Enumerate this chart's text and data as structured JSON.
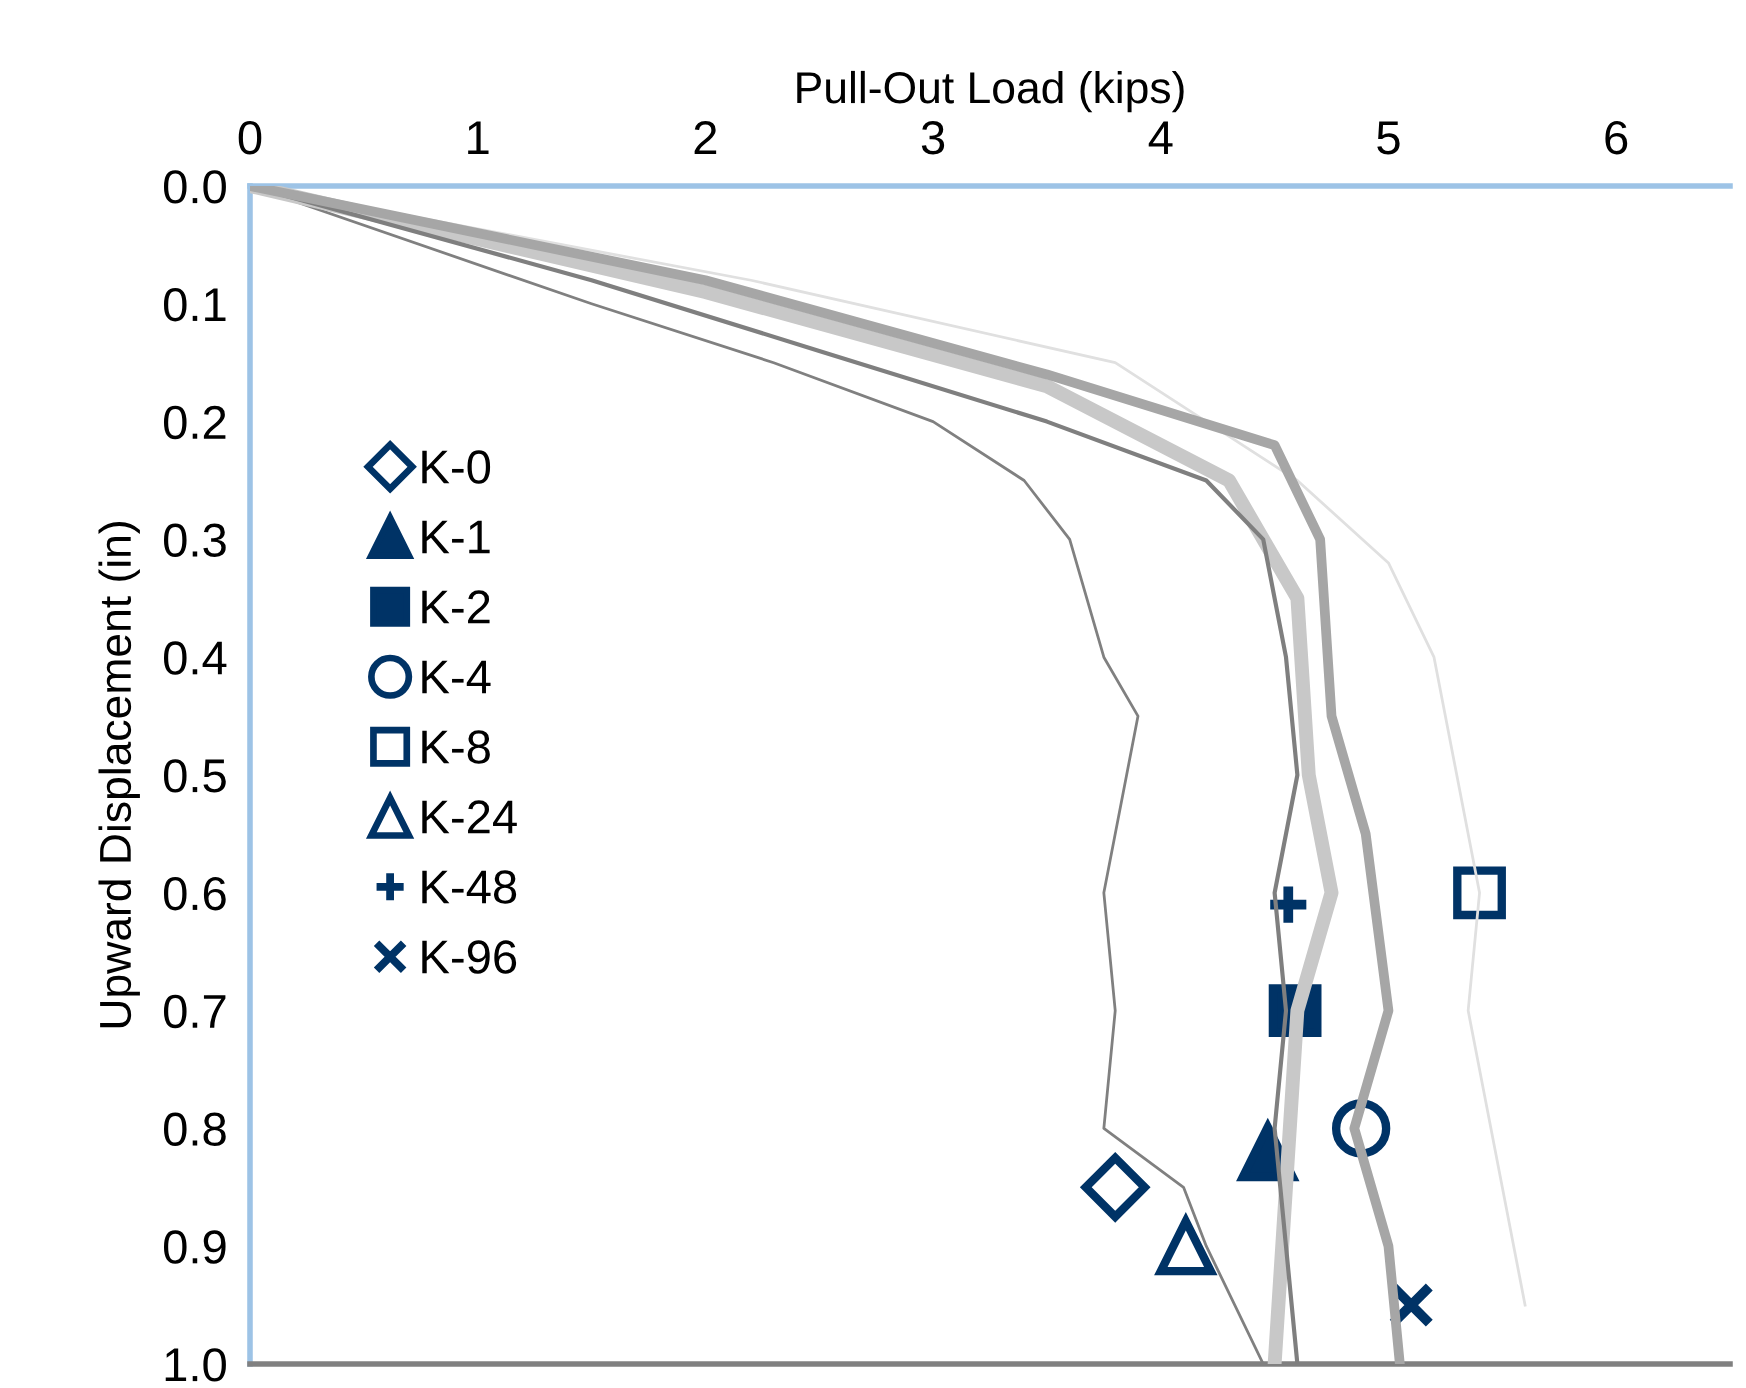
{
  "chart_data": {
    "type": "line",
    "xlabel": "Pull-Out Load (kips)",
    "ylabel": "Upward Displacement (in)",
    "xlim": [
      0,
      6.5
    ],
    "xticks": [
      0,
      1,
      2,
      3,
      4,
      5,
      6
    ],
    "ylim": [
      1.0,
      0.0
    ],
    "yticks": [
      {
        "value": 0,
        "label": "0.0"
      },
      0.1,
      0.2,
      0.3,
      0.4,
      0.5,
      0.6,
      0.7,
      0.8,
      0.9,
      {
        "value": 1,
        "label": "1.0"
      }
    ],
    "grid": false,
    "legend": "left",
    "marker": "none",
    "line_style": "solid",
    "series": [
      {
        "color": "#e0e0e0",
        "x": [
          0,
          2.2,
          3.8,
          4.6,
          5.0,
          5.2,
          5.3,
          5.4,
          5.35,
          5.5,
          5.6
        ],
        "values": [
          0,
          0.08,
          0.15,
          0.25,
          0.32,
          0.4,
          0.5,
          0.6,
          0.7,
          0.85,
          0.95
        ]
      },
      {
        "color": "#808080",
        "x": [
          0,
          1.5,
          2.3,
          3.0,
          3.4,
          3.6,
          3.75,
          3.9,
          3.85,
          3.75,
          3.8,
          3.75,
          4.1,
          4.2,
          4.45
        ],
        "values": [
          0,
          0.1,
          0.15,
          0.2,
          0.25,
          0.3,
          0.4,
          0.45,
          0.5,
          0.6,
          0.7,
          0.8,
          0.85,
          0.9,
          1.0
        ]
      },
      {
        "color": "#c8c8c8",
        "x": [
          0,
          2,
          3.5,
          4.3,
          4.6,
          4.65,
          4.75,
          4.6,
          4.55,
          4.5
        ],
        "values": [
          0,
          0.09,
          0.17,
          0.25,
          0.35,
          0.5,
          0.6,
          0.7,
          0.85,
          1.0
        ]
      },
      {
        "color": "#7f7f7f",
        "x": [
          0,
          1.5,
          2.5,
          3.5,
          4.2,
          4.45,
          4.55,
          4.6,
          4.5,
          4.55,
          4.5,
          4.55,
          4.6
        ],
        "values": [
          0,
          0.08,
          0.14,
          0.2,
          0.25,
          0.3,
          0.4,
          0.5,
          0.6,
          0.7,
          0.8,
          0.9,
          1.0
        ]
      },
      {
        "color": "#a6a6a6",
        "x": [
          0,
          2,
          3.5,
          4.5,
          4.7,
          4.75,
          4.9,
          5.0,
          4.85,
          5.0,
          5.05
        ],
        "values": [
          0,
          0.08,
          0.16,
          0.22,
          0.3,
          0.45,
          0.55,
          0.7,
          0.8,
          0.9,
          1.0
        ]
      },
      {
        "type": "scatter",
        "name": "K-0",
        "color": "#003366",
        "marker": "diamond",
        "x": [
          3.8
        ],
        "values": [
          0.85
        ]
      },
      {
        "type": "scatter",
        "name": "K-1",
        "color": "#003366",
        "marker": "triangle",
        "x": [
          4.47
        ],
        "values": [
          0.82
        ]
      },
      {
        "type": "scatter",
        "name": "K-2",
        "color": "#003366",
        "marker": "square",
        "x": [
          4.59
        ],
        "values": [
          0.7
        ]
      },
      {
        "type": "scatter",
        "name": "K-4",
        "color": "#003366",
        "marker": "circle",
        "x": [
          4.88
        ],
        "values": [
          0.8
        ]
      },
      {
        "type": "scatter",
        "name": "K-8",
        "color": "#003366",
        "marker": "square",
        "x": [
          5.4
        ],
        "values": [
          0.6
        ]
      },
      {
        "type": "scatter",
        "name": "K-24",
        "color": "#003366",
        "marker": "triangle",
        "x": [
          4.11
        ],
        "values": [
          0.9
        ]
      },
      {
        "type": "scatter",
        "name": "K-48",
        "color": "#003366",
        "marker": "plus",
        "x": [
          4.56
        ],
        "values": [
          0.61
        ]
      },
      {
        "type": "scatter",
        "name": "K-96",
        "color": "#003366",
        "marker": "cross",
        "x": [
          5.1
        ],
        "values": [
          0.95
        ]
      }
    ]
  }
}
